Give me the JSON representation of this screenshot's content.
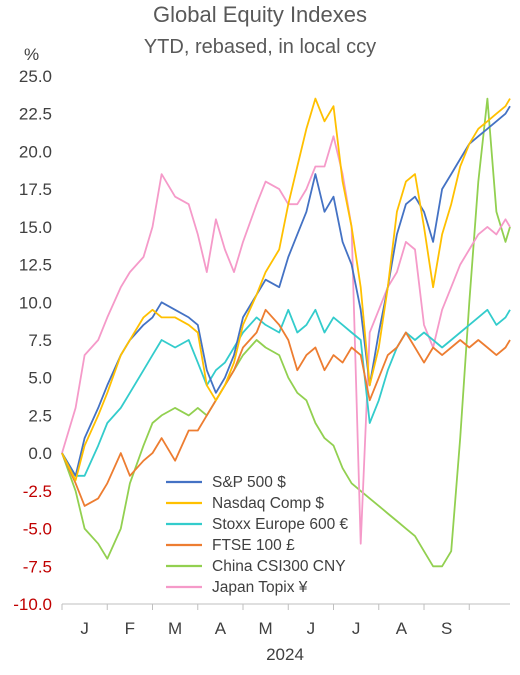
{
  "chart_data": {
    "type": "line",
    "title": "Global Equity Indexes",
    "subtitle": "YTD, rebased, in local ccy",
    "ylabel": "%",
    "xlabel": "2024",
    "ylim": [
      -10,
      25
    ],
    "yticks": [
      "25.0",
      "22.5",
      "20.0",
      "17.5",
      "15.0",
      "12.5",
      "10.0",
      "7.5",
      "5.0",
      "2.5",
      "0.0",
      "-2.5",
      "-5.0",
      "-7.5",
      "-10.0"
    ],
    "ytick_values": [
      25,
      22.5,
      20,
      17.5,
      15,
      12.5,
      10,
      7.5,
      5,
      2.5,
      0,
      -2.5,
      -5,
      -7.5,
      -10
    ],
    "negative_tick_color": "#c00000",
    "xticks": [
      "J",
      "F",
      "M",
      "A",
      "M",
      "J",
      "J",
      "A",
      "S"
    ],
    "x_unit": "month index (0 = start of Jan 2024, 9 = end of Sep 2024)",
    "xlim": [
      0,
      9.9
    ],
    "legend_position": "bottom-center",
    "grid": false,
    "series": [
      {
        "name": "S&P 500 $",
        "color": "#4472c4",
        "x": [
          0,
          0.3,
          0.5,
          0.8,
          1.0,
          1.3,
          1.5,
          1.8,
          2.0,
          2.2,
          2.5,
          2.8,
          3.0,
          3.2,
          3.4,
          3.6,
          3.8,
          4.0,
          4.3,
          4.5,
          4.8,
          5.0,
          5.2,
          5.4,
          5.6,
          5.8,
          6.0,
          6.2,
          6.4,
          6.6,
          6.8,
          7.0,
          7.2,
          7.4,
          7.6,
          7.8,
          8.0,
          8.2,
          8.4,
          8.6,
          8.8,
          9.0,
          9.2,
          9.4,
          9.6,
          9.8,
          9.9
        ],
        "y": [
          0,
          -1.5,
          1.0,
          3.0,
          4.5,
          6.5,
          7.5,
          8.5,
          9.0,
          10.0,
          9.5,
          9.0,
          8.5,
          5.5,
          4.0,
          5.0,
          6.5,
          9.0,
          10.5,
          11.5,
          11.0,
          13.0,
          14.5,
          16.0,
          18.5,
          16.0,
          17.0,
          14.0,
          12.5,
          9.5,
          4.5,
          8.0,
          11.0,
          14.5,
          16.5,
          17.0,
          16.0,
          14.0,
          17.5,
          18.5,
          19.5,
          20.5,
          21.0,
          21.5,
          22.0,
          22.5,
          23.0
        ]
      },
      {
        "name": "Nasdaq Comp $",
        "color": "#ffc000",
        "x": [
          0,
          0.3,
          0.5,
          0.8,
          1.0,
          1.3,
          1.5,
          1.8,
          2.0,
          2.2,
          2.5,
          2.8,
          3.0,
          3.2,
          3.4,
          3.6,
          3.8,
          4.0,
          4.3,
          4.5,
          4.8,
          5.0,
          5.2,
          5.4,
          5.6,
          5.8,
          6.0,
          6.2,
          6.4,
          6.6,
          6.8,
          7.0,
          7.2,
          7.4,
          7.6,
          7.8,
          8.0,
          8.2,
          8.4,
          8.6,
          8.8,
          9.0,
          9.2,
          9.4,
          9.6,
          9.8,
          9.9
        ],
        "y": [
          0,
          -1.8,
          0.5,
          2.5,
          4.0,
          6.5,
          7.5,
          9.0,
          9.5,
          9.0,
          9.0,
          8.5,
          8.0,
          4.5,
          3.5,
          4.5,
          6.0,
          8.5,
          10.5,
          12.0,
          13.5,
          16.5,
          19.0,
          21.5,
          23.5,
          22.0,
          23.0,
          18.0,
          15.0,
          11.0,
          4.5,
          7.0,
          11.0,
          16.0,
          18.0,
          18.5,
          15.0,
          11.0,
          14.5,
          16.5,
          19.0,
          20.5,
          21.5,
          22.0,
          22.5,
          23.0,
          23.5
        ]
      },
      {
        "name": "Stoxx Europe 600 €",
        "color": "#33cccc",
        "x": [
          0,
          0.3,
          0.5,
          0.8,
          1.0,
          1.3,
          1.5,
          1.8,
          2.0,
          2.2,
          2.5,
          2.8,
          3.0,
          3.2,
          3.4,
          3.6,
          3.8,
          4.0,
          4.3,
          4.5,
          4.8,
          5.0,
          5.2,
          5.4,
          5.6,
          5.8,
          6.0,
          6.2,
          6.4,
          6.6,
          6.8,
          7.0,
          7.2,
          7.4,
          7.6,
          7.8,
          8.0,
          8.2,
          8.4,
          8.6,
          8.8,
          9.0,
          9.2,
          9.4,
          9.6,
          9.8,
          9.9
        ],
        "y": [
          0,
          -1.5,
          -1.5,
          0.5,
          2.0,
          3.0,
          4.0,
          5.5,
          6.5,
          7.5,
          7.0,
          7.5,
          6.0,
          4.5,
          5.5,
          6.0,
          7.0,
          8.0,
          9.0,
          8.5,
          8.0,
          9.5,
          8.0,
          8.5,
          9.5,
          8.0,
          9.0,
          8.5,
          8.0,
          7.5,
          2.0,
          3.5,
          5.5,
          7.0,
          8.0,
          7.5,
          8.0,
          7.5,
          7.0,
          7.5,
          8.0,
          8.5,
          9.0,
          9.5,
          8.5,
          9.0,
          9.5
        ]
      },
      {
        "name": "FTSE 100 £",
        "color": "#ed7d31",
        "x": [
          0,
          0.3,
          0.5,
          0.8,
          1.0,
          1.3,
          1.5,
          1.8,
          2.0,
          2.2,
          2.5,
          2.8,
          3.0,
          3.2,
          3.4,
          3.6,
          3.8,
          4.0,
          4.3,
          4.5,
          4.8,
          5.0,
          5.2,
          5.4,
          5.6,
          5.8,
          6.0,
          6.2,
          6.4,
          6.6,
          6.8,
          7.0,
          7.2,
          7.4,
          7.6,
          7.8,
          8.0,
          8.2,
          8.4,
          8.6,
          8.8,
          9.0,
          9.2,
          9.4,
          9.6,
          9.8,
          9.9
        ],
        "y": [
          0,
          -2.0,
          -3.5,
          -3.0,
          -2.0,
          0,
          -1.5,
          -0.5,
          0,
          1.0,
          -0.5,
          1.5,
          1.5,
          2.5,
          3.5,
          4.5,
          5.5,
          7.0,
          8.0,
          9.5,
          8.5,
          7.5,
          5.5,
          6.5,
          7.0,
          5.5,
          6.5,
          6.0,
          7.0,
          6.5,
          3.5,
          5.0,
          6.5,
          7.0,
          8.0,
          7.0,
          6.0,
          7.0,
          6.5,
          7.0,
          7.5,
          7.0,
          7.5,
          7.0,
          6.5,
          7.0,
          7.5
        ]
      },
      {
        "name": "China CSI300 CNY",
        "color": "#92d050",
        "x": [
          0,
          0.3,
          0.5,
          0.8,
          1.0,
          1.3,
          1.5,
          1.8,
          2.0,
          2.2,
          2.5,
          2.8,
          3.0,
          3.2,
          3.4,
          3.6,
          3.8,
          4.0,
          4.3,
          4.5,
          4.8,
          5.0,
          5.2,
          5.4,
          5.6,
          5.8,
          6.0,
          6.2,
          6.4,
          6.6,
          6.8,
          7.0,
          7.2,
          7.4,
          7.6,
          7.8,
          8.0,
          8.2,
          8.4,
          8.6,
          8.8,
          9.0,
          9.2,
          9.4,
          9.6,
          9.8,
          9.9
        ],
        "y": [
          0,
          -2.5,
          -5.0,
          -6.0,
          -7.0,
          -5.0,
          -2.0,
          0.5,
          2.0,
          2.5,
          3.0,
          2.5,
          3.0,
          2.5,
          3.5,
          4.5,
          5.5,
          6.5,
          7.5,
          7.0,
          6.5,
          5.0,
          4.0,
          3.5,
          2.0,
          1.0,
          0.5,
          -1.0,
          -2.0,
          -2.5,
          -3.0,
          -3.5,
          -4.0,
          -4.5,
          -5.0,
          -5.5,
          -6.5,
          -7.5,
          -7.5,
          -6.5,
          1.0,
          10.0,
          18.0,
          23.5,
          16.0,
          14.0,
          15.0
        ]
      },
      {
        "name": "Japan Topix ¥",
        "color": "#f59ac9",
        "x": [
          0,
          0.3,
          0.5,
          0.8,
          1.0,
          1.3,
          1.5,
          1.8,
          2.0,
          2.2,
          2.5,
          2.8,
          3.0,
          3.2,
          3.4,
          3.6,
          3.8,
          4.0,
          4.3,
          4.5,
          4.8,
          5.0,
          5.2,
          5.4,
          5.6,
          5.8,
          6.0,
          6.2,
          6.4,
          6.6,
          6.8,
          7.0,
          7.2,
          7.4,
          7.6,
          7.8,
          8.0,
          8.2,
          8.4,
          8.6,
          8.8,
          9.0,
          9.2,
          9.4,
          9.6,
          9.8,
          9.9
        ],
        "y": [
          0,
          3.0,
          6.5,
          7.5,
          9.0,
          11.0,
          12.0,
          13.0,
          15.0,
          18.5,
          17.0,
          16.5,
          14.5,
          12.0,
          15.5,
          13.5,
          12.0,
          14.0,
          16.5,
          18.0,
          17.5,
          16.5,
          16.5,
          17.5,
          19.0,
          19.0,
          21.0,
          18.5,
          15.0,
          -6.0,
          8.0,
          9.5,
          11.0,
          12.0,
          14.0,
          13.5,
          8.5,
          7.0,
          9.5,
          11.0,
          12.5,
          13.5,
          14.5,
          15.0,
          14.5,
          15.5,
          15.0
        ]
      }
    ]
  }
}
